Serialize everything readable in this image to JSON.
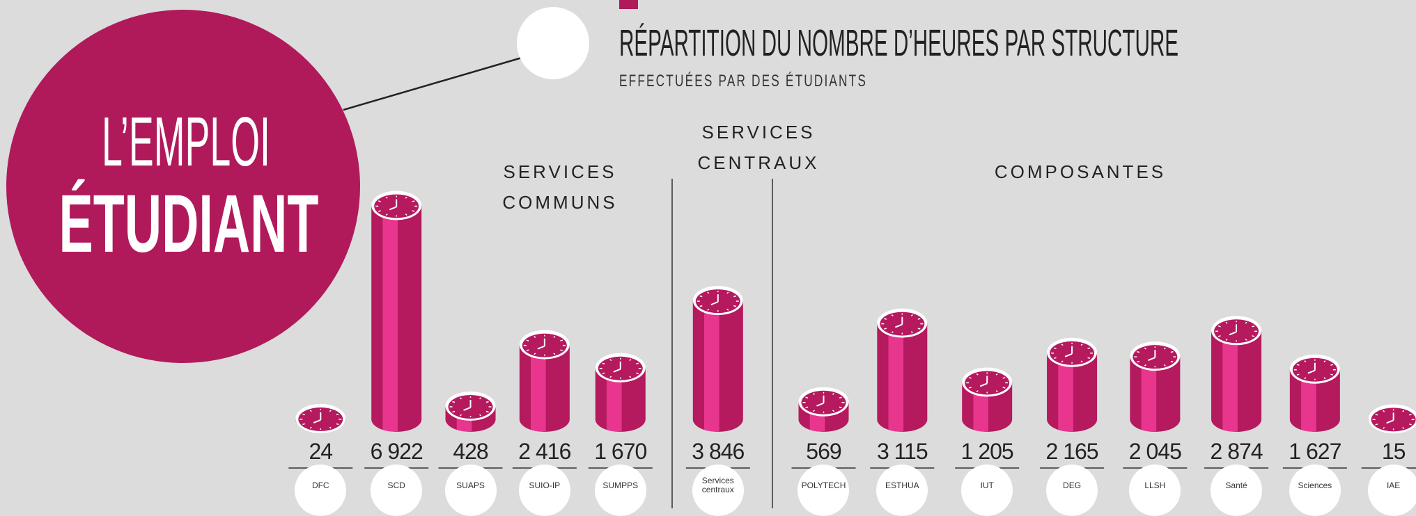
{
  "chart_data": {
    "type": "bar",
    "title": "RÉPARTITION DU NOMBRE D’HEURES PAR STRUCTURE",
    "subtitle": "EFFECTUÉES PAR DES ÉTUDIANTS",
    "badge": [
      "L’EMPLOI",
      "ÉTUDIANT"
    ],
    "groups": [
      {
        "lines": [
          "SERVICES",
          "COMMUNS"
        ],
        "from": 0,
        "to": 4
      },
      {
        "lines": [
          "SERVICES",
          "CENTRAUX"
        ],
        "from": 5,
        "to": 5
      },
      {
        "lines": [
          "COMPOSANTES"
        ],
        "from": 6,
        "to": 13
      }
    ],
    "categories": [
      "DFC",
      "SCD",
      "SUAPS",
      "SUIO-IP",
      "SUMPPS",
      "Services centraux",
      "POLYTECH",
      "ESTHUA",
      "IUT",
      "DEG",
      "LLSH",
      "Santé",
      "Sciences",
      "IAE"
    ],
    "values": [
      24,
      6922,
      428,
      2416,
      1670,
      3846,
      569,
      3115,
      1205,
      2165,
      2045,
      2874,
      1627,
      15
    ],
    "value_labels": [
      "24",
      "6 922",
      "428",
      "2 416",
      "1 670",
      "3 846",
      "569",
      "3 115",
      "1 205",
      "2 165",
      "2 045",
      "2 874",
      "1 627",
      "15"
    ],
    "color": "#b5195e",
    "ylim": [
      0,
      7000
    ]
  }
}
